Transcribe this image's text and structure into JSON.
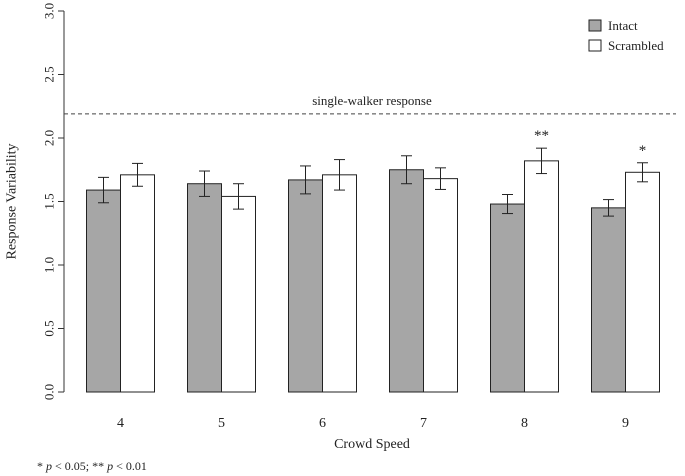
{
  "chart_data": {
    "type": "bar",
    "title": "",
    "xlabel": "Crowd Speed",
    "ylabel": "Response Variability",
    "categories": [
      "4",
      "5",
      "6",
      "7",
      "8",
      "9"
    ],
    "ylim": [
      0,
      3.0
    ],
    "yticks": [
      "0.0",
      "0.5",
      "1.0",
      "1.5",
      "2.0",
      "2.5",
      "3.0"
    ],
    "series": [
      {
        "name": "Intact",
        "color": "#a6a6a6",
        "values": [
          1.59,
          1.64,
          1.67,
          1.75,
          1.48,
          1.45
        ],
        "error": [
          0.1,
          0.1,
          0.11,
          0.11,
          0.075,
          0.065
        ]
      },
      {
        "name": "Scrambled",
        "color": "#ffffff",
        "values": [
          1.71,
          1.54,
          1.71,
          1.68,
          1.82,
          1.73
        ],
        "error": [
          0.09,
          0.1,
          0.12,
          0.085,
          0.1,
          0.075
        ]
      }
    ],
    "reference_line": {
      "value": 2.19,
      "label": "single-walker response",
      "style": "dashed"
    },
    "significance": [
      {
        "category": "8",
        "label": "**"
      },
      {
        "category": "9",
        "label": "*"
      }
    ],
    "legend_position": "top-right",
    "grid": false
  },
  "footnote": {
    "p1_mark": "* ",
    "p1_sym": "p",
    "p1_text": " < 0.05;  ** ",
    "p2_sym": "p",
    "p2_text": " < 0.01"
  }
}
